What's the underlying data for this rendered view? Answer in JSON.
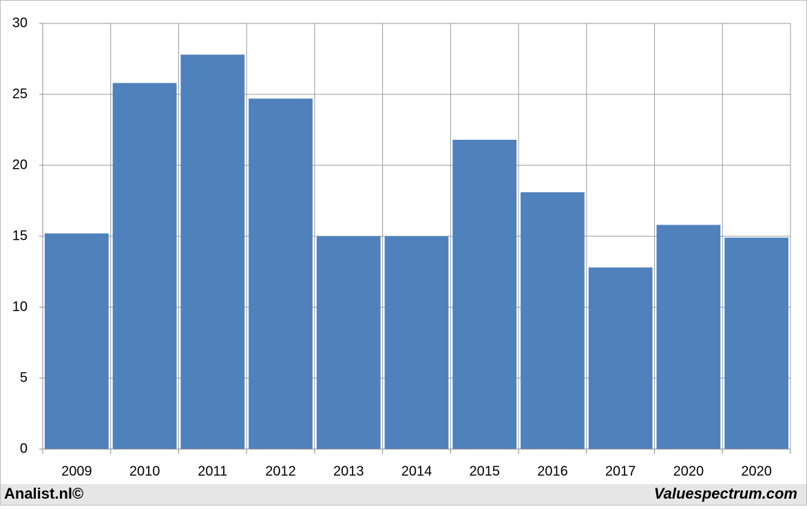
{
  "chart_data": {
    "type": "bar",
    "categories": [
      "2009",
      "2010",
      "2011",
      "2012",
      "2013",
      "2014",
      "2015",
      "2016",
      "2017",
      "2020",
      "2020"
    ],
    "values": [
      15.2,
      25.8,
      27.8,
      24.7,
      15.0,
      15.0,
      21.8,
      18.1,
      12.8,
      15.8,
      14.9
    ],
    "color": "#4f81bd",
    "ylim": [
      0,
      30
    ],
    "yticks": [
      0,
      5,
      10,
      15,
      20,
      25,
      30
    ],
    "grid": true,
    "annotations": [
      "Analist.nl©",
      "Valuespectrum.com"
    ]
  }
}
